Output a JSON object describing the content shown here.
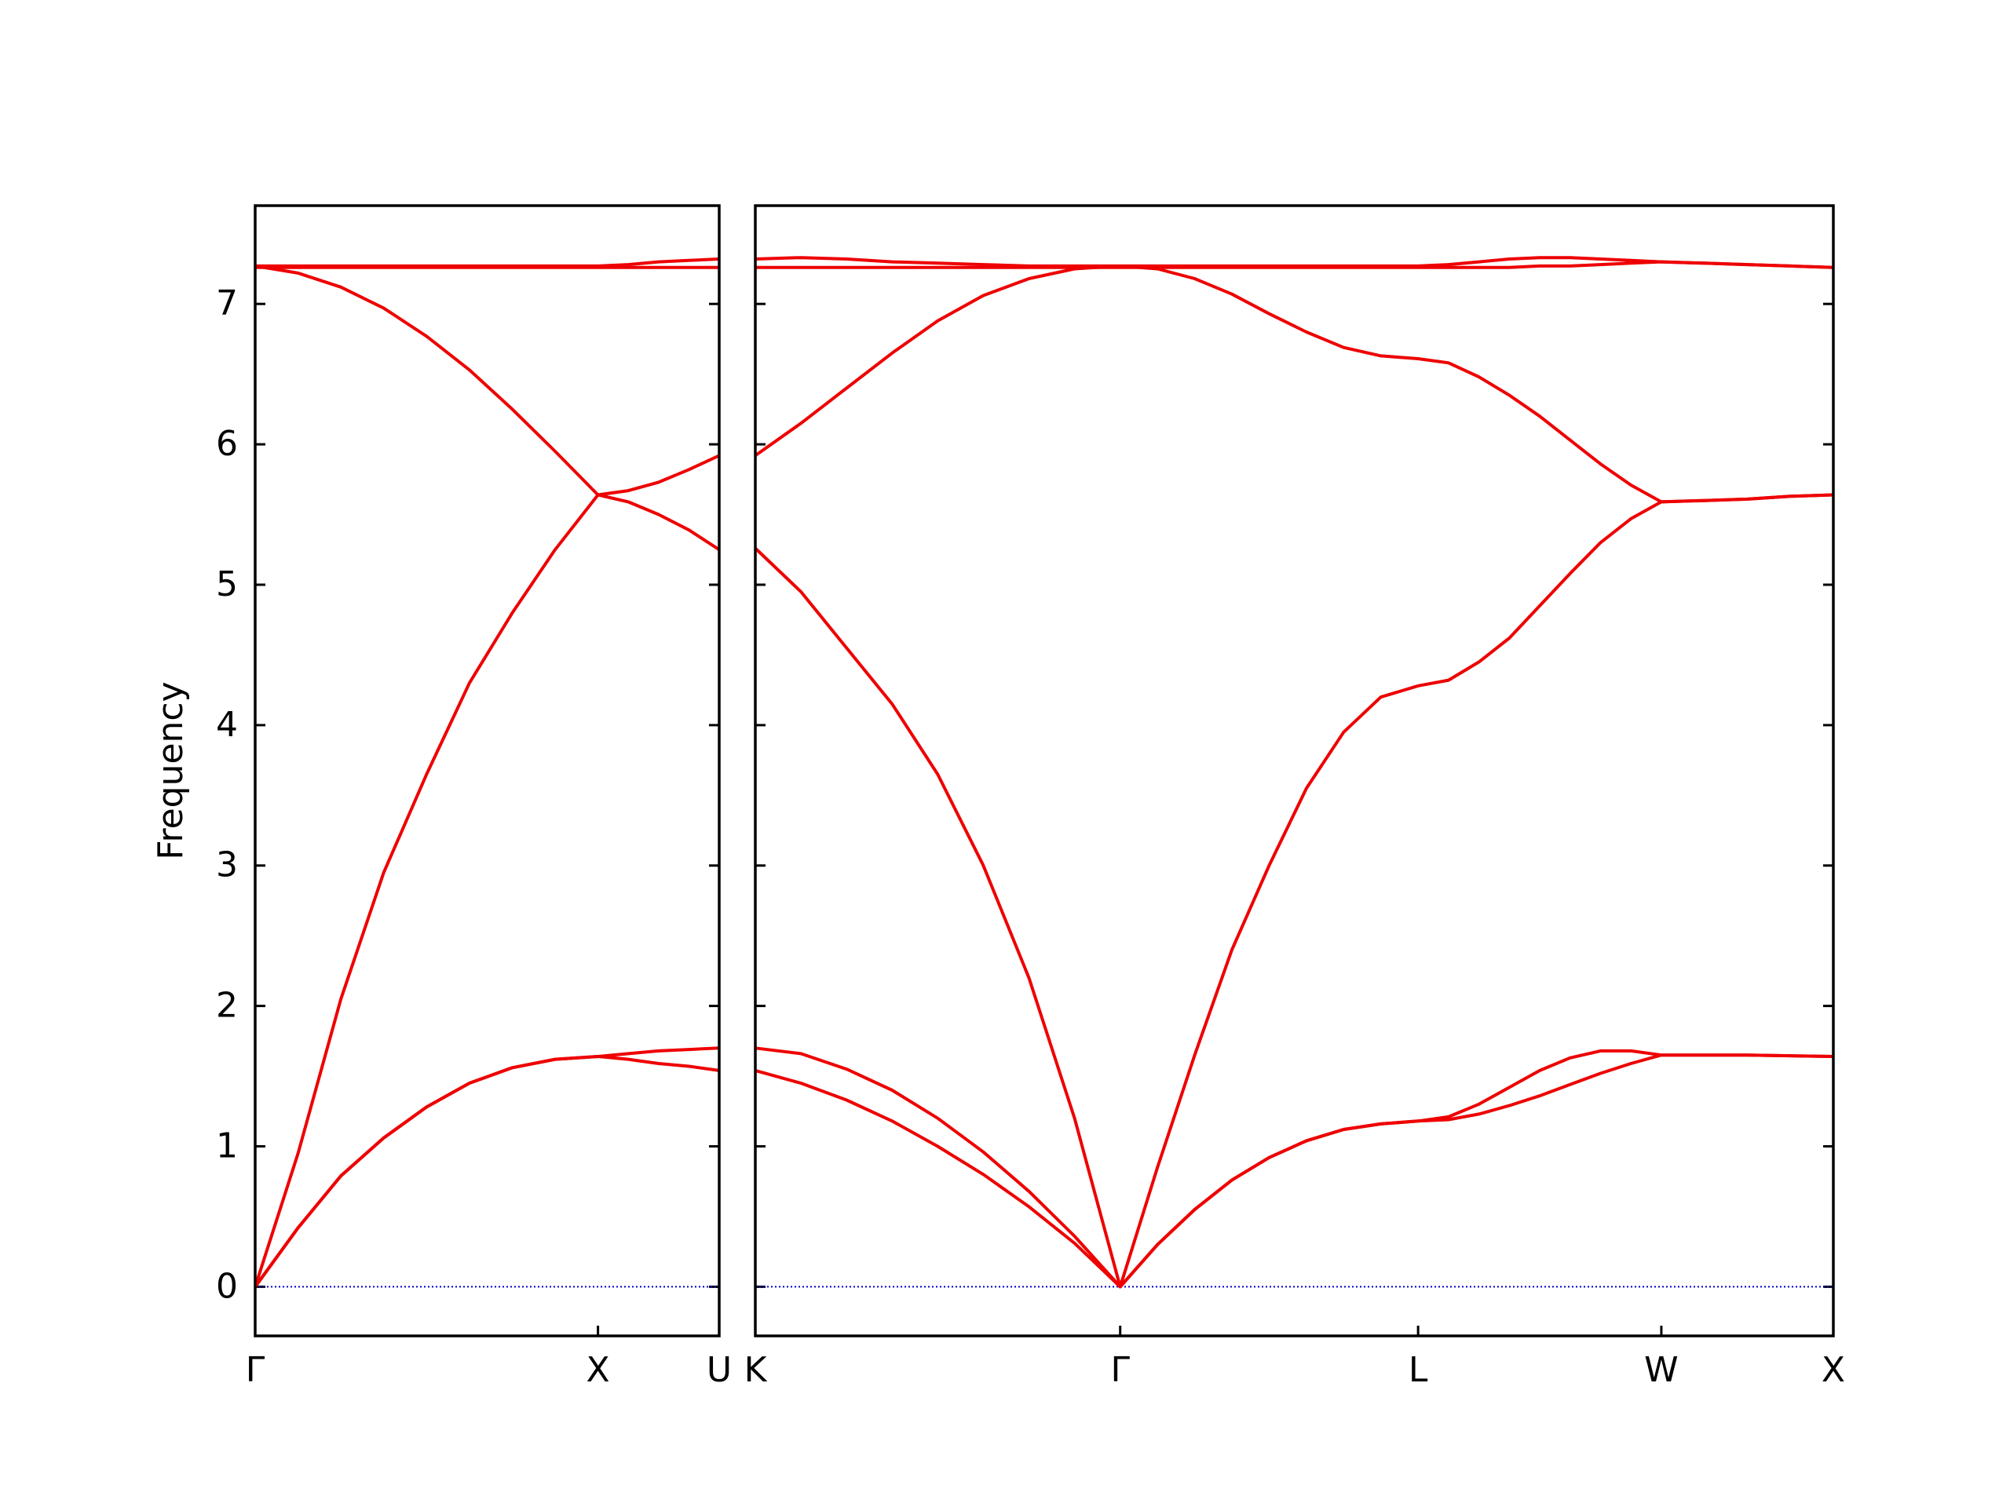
{
  "chart_data": [
    {
      "type": "line",
      "y_label": "Frequency",
      "color": "#ee0000",
      "x": [
        0,
        0.125,
        0.25,
        0.375,
        0.5,
        0.625,
        0.75,
        0.875,
        1.0,
        1.0884,
        1.1768,
        1.2652,
        1.3536
      ],
      "series": [
        {
          "values": [
            0,
            0.42,
            0.79,
            1.06,
            1.28,
            1.45,
            1.56,
            1.62,
            1.64,
            1.62,
            1.59,
            1.57,
            1.54
          ]
        },
        {
          "values": [
            0,
            0.42,
            0.79,
            1.06,
            1.28,
            1.45,
            1.56,
            1.62,
            1.64,
            1.66,
            1.68,
            1.69,
            1.7
          ]
        },
        {
          "values": [
            0,
            0.95,
            2.05,
            2.95,
            3.65,
            4.3,
            4.8,
            5.25,
            5.64,
            5.67,
            5.73,
            5.82,
            5.92
          ]
        },
        {
          "values": [
            7.27,
            7.22,
            7.12,
            6.97,
            6.77,
            6.53,
            6.25,
            5.95,
            5.64,
            5.59,
            5.5,
            5.39,
            5.25
          ]
        },
        {
          "values": [
            7.26,
            7.26,
            7.26,
            7.26,
            7.26,
            7.26,
            7.26,
            7.26,
            7.26,
            7.26,
            7.26,
            7.26,
            7.26
          ]
        },
        {
          "values": [
            7.27,
            7.27,
            7.27,
            7.27,
            7.27,
            7.27,
            7.27,
            7.27,
            7.27,
            7.28,
            7.3,
            7.31,
            7.32
          ]
        }
      ],
      "xlim": [
        0,
        1.3536
      ],
      "xticks": [
        {
          "value": 0,
          "label": "Γ"
        },
        {
          "value": 1.0,
          "label": "X"
        },
        {
          "value": 1.3536,
          "label": "U"
        }
      ],
      "ylim": [
        -0.35,
        7.7
      ],
      "yticks": [
        0,
        1,
        2,
        3,
        4,
        5,
        6,
        7
      ],
      "ytick_labels": true,
      "hline": 0,
      "hline_color": "#0000cd"
    },
    {
      "type": "line",
      "color": "#ee0000",
      "x": [
        0,
        0.1326,
        0.2652,
        0.3978,
        0.5303,
        0.6629,
        0.7955,
        0.9281,
        1.0607,
        1.169,
        1.2772,
        1.3855,
        1.4937,
        1.602,
        1.7102,
        1.8185,
        1.9267,
        2.0151,
        2.1035,
        2.1919,
        2.2803,
        2.3686,
        2.457,
        2.5454,
        2.6338,
        2.7588,
        2.8838,
        3.0088,
        3.1338
      ],
      "series": [
        {
          "values": [
            1.54,
            1.45,
            1.33,
            1.18,
            1.0,
            0.8,
            0.57,
            0.31,
            0,
            0.3,
            0.55,
            0.76,
            0.92,
            1.04,
            1.12,
            1.16,
            1.18,
            1.19,
            1.23,
            1.29,
            1.36,
            1.44,
            1.52,
            1.59,
            1.65,
            1.65,
            1.65,
            1.645,
            1.64
          ]
        },
        {
          "values": [
            1.7,
            1.66,
            1.55,
            1.4,
            1.2,
            0.96,
            0.68,
            0.36,
            0,
            0.3,
            0.55,
            0.76,
            0.92,
            1.04,
            1.12,
            1.16,
            1.18,
            1.21,
            1.3,
            1.42,
            1.54,
            1.63,
            1.68,
            1.68,
            1.65,
            1.65,
            1.65,
            1.645,
            1.64
          ]
        },
        {
          "values": [
            5.26,
            4.95,
            4.55,
            4.15,
            3.65,
            3.0,
            2.2,
            1.2,
            0,
            0.85,
            1.65,
            2.4,
            3.0,
            3.55,
            3.95,
            4.2,
            4.28,
            4.32,
            4.45,
            4.62,
            4.85,
            5.08,
            5.3,
            5.47,
            5.59,
            5.6,
            5.61,
            5.63,
            5.64
          ]
        },
        {
          "values": [
            5.92,
            6.15,
            6.4,
            6.65,
            6.88,
            7.06,
            7.18,
            7.25,
            7.27,
            7.25,
            7.18,
            7.07,
            6.93,
            6.8,
            6.69,
            6.63,
            6.61,
            6.58,
            6.48,
            6.35,
            6.2,
            6.03,
            5.86,
            5.71,
            5.59,
            5.6,
            5.61,
            5.63,
            5.64
          ]
        },
        {
          "values": [
            7.26,
            7.26,
            7.26,
            7.26,
            7.26,
            7.26,
            7.26,
            7.26,
            7.26,
            7.26,
            7.26,
            7.26,
            7.26,
            7.26,
            7.26,
            7.26,
            7.26,
            7.26,
            7.26,
            7.26,
            7.27,
            7.27,
            7.28,
            7.29,
            7.3,
            7.29,
            7.28,
            7.27,
            7.26
          ]
        },
        {
          "values": [
            7.32,
            7.33,
            7.32,
            7.3,
            7.29,
            7.28,
            7.27,
            7.27,
            7.27,
            7.27,
            7.27,
            7.27,
            7.27,
            7.27,
            7.27,
            7.27,
            7.27,
            7.28,
            7.3,
            7.32,
            7.33,
            7.33,
            7.32,
            7.31,
            7.3,
            7.29,
            7.28,
            7.27,
            7.26
          ]
        }
      ],
      "xlim": [
        0,
        3.1338
      ],
      "xticks": [
        {
          "value": 0,
          "label": "K"
        },
        {
          "value": 1.0607,
          "label": "Γ"
        },
        {
          "value": 1.9267,
          "label": "L"
        },
        {
          "value": 2.6338,
          "label": "W"
        },
        {
          "value": 3.1338,
          "label": "X"
        }
      ],
      "ylim": [
        -0.35,
        7.7
      ],
      "yticks": [
        0,
        1,
        2,
        3,
        4,
        5,
        6,
        7
      ],
      "ytick_labels": false,
      "hline": 0,
      "hline_color": "#0000cd"
    }
  ]
}
